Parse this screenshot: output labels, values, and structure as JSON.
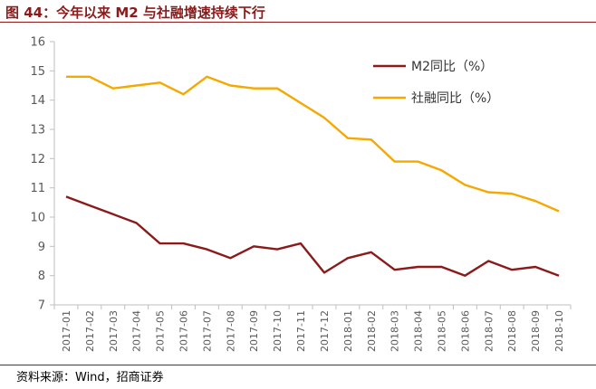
{
  "figure": {
    "title": "图 44：今年以来 M2 与社融增速持续下行",
    "source": "资料来源：Wind，招商证券"
  },
  "colors": {
    "m2": "#8b1a1a",
    "social": "#f5a800",
    "axis": "#bfbfbf",
    "title": "#8b1a1a"
  },
  "chart_data": {
    "type": "line",
    "title": "",
    "xlabel": "",
    "ylabel": "",
    "ylim": [
      7,
      16
    ],
    "yticks": [
      7,
      8,
      9,
      10,
      11,
      12,
      13,
      14,
      15,
      16
    ],
    "grid": false,
    "legend_position": "top-right",
    "categories": [
      "2017-01",
      "2017-02",
      "2017-03",
      "2017-04",
      "2017-05",
      "2017-06",
      "2017-07",
      "2017-08",
      "2017-09",
      "2017-10",
      "2017-11",
      "2017-12",
      "2018-01",
      "2018-02",
      "2018-03",
      "2018-04",
      "2018-05",
      "2018-06",
      "2018-07",
      "2018-08",
      "2018-09",
      "2018-10"
    ],
    "series": [
      {
        "name": "M2同比（%）",
        "color_key": "m2",
        "values": [
          10.7,
          10.4,
          10.1,
          9.8,
          9.1,
          9.1,
          8.9,
          8.6,
          9.0,
          8.9,
          9.1,
          8.1,
          8.6,
          8.8,
          8.2,
          8.3,
          8.3,
          8.0,
          8.5,
          8.2,
          8.3,
          8.0
        ]
      },
      {
        "name": "社融同比（%）",
        "color_key": "social",
        "values": [
          14.8,
          14.8,
          14.4,
          14.5,
          14.6,
          14.2,
          14.8,
          14.5,
          14.4,
          14.4,
          13.9,
          13.4,
          12.7,
          12.65,
          11.9,
          11.9,
          11.6,
          11.1,
          10.85,
          10.8,
          10.55,
          10.2
        ]
      }
    ]
  }
}
